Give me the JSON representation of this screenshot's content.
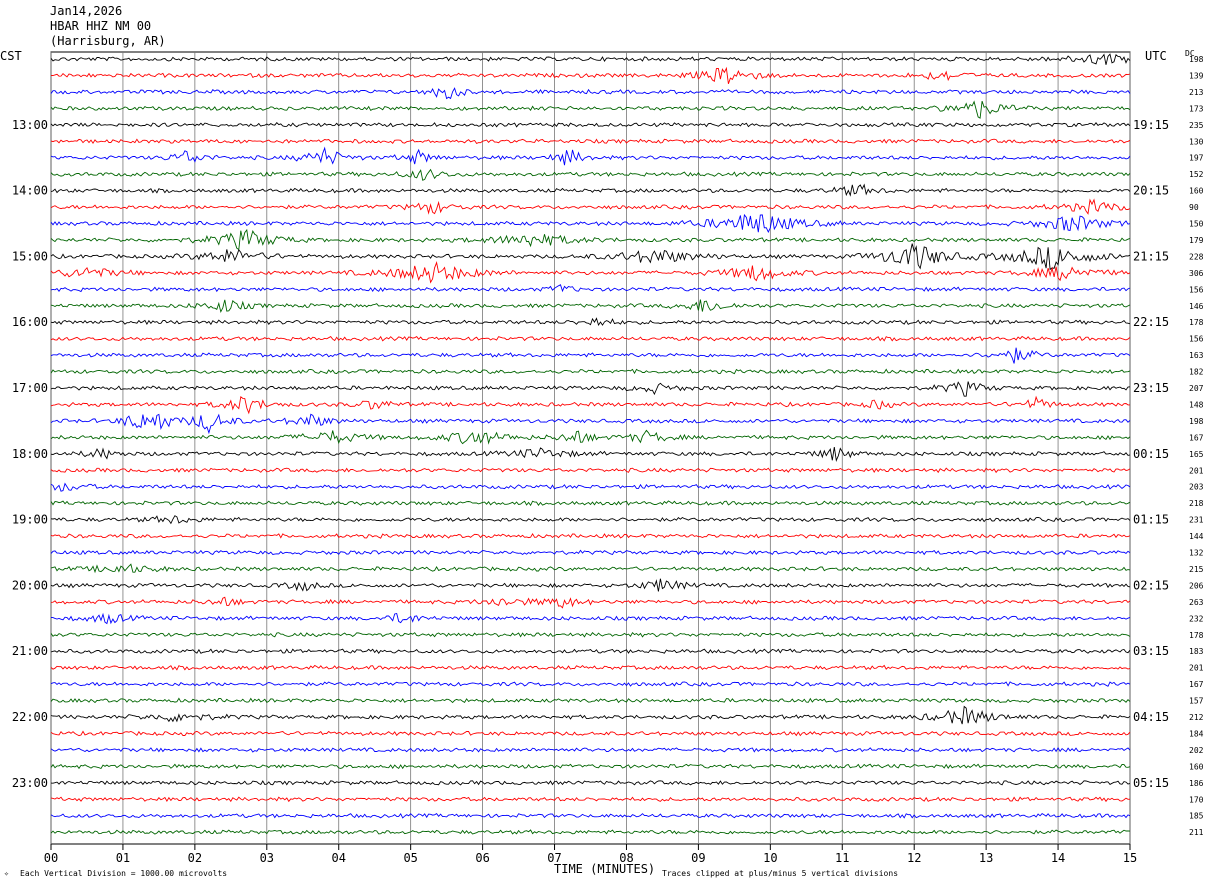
{
  "header": {
    "date": "Jan14,2026",
    "station": "HBAR HHZ NM 00",
    "location": "(Harrisburg, AR)"
  },
  "labels": {
    "left_zone": "CST",
    "right_zone": "UTC",
    "dc_label": "DC",
    "xlabel": "TIME (MINUTES)",
    "scale_note": "Each Vertical Division = 1000.00 microvolts",
    "clip_note": "Traces clipped at plus/minus 5 vertical divisions"
  },
  "colors": {
    "cycle": [
      "#000000",
      "#ff0000",
      "#0000ff",
      "#006400"
    ],
    "grid": "#000000",
    "text": "#000000"
  },
  "chart_data": {
    "type": "seismogram",
    "x_ticks": [
      "00",
      "01",
      "02",
      "03",
      "04",
      "05",
      "06",
      "07",
      "08",
      "09",
      "10",
      "11",
      "12",
      "13",
      "14",
      "15"
    ],
    "xlim": [
      0,
      15
    ],
    "trace_count": 48,
    "trace_minutes": 15,
    "left_hour_labels": [
      "13:00",
      "14:00",
      "15:00",
      "16:00",
      "17:00",
      "18:00",
      "19:00",
      "20:00",
      "21:00",
      "22:00",
      "23:00"
    ],
    "right_hour_labels": [
      "19:15",
      "20:15",
      "21:15",
      "22:15",
      "23:15",
      "00:15",
      "01:15",
      "02:15",
      "03:15",
      "04:15",
      "05:15"
    ],
    "hour_label_first_trace": 4,
    "hour_label_every": 4,
    "dc_offsets": [
      198,
      139,
      213,
      173,
      235,
      130,
      197,
      152,
      160,
      90,
      150,
      179,
      228,
      306,
      156,
      146,
      178,
      156,
      163,
      182,
      207,
      148,
      198,
      167,
      165,
      201,
      203,
      218,
      231,
      144,
      132,
      215,
      206,
      263,
      232,
      178,
      183,
      201,
      167,
      157,
      212,
      184,
      202,
      160,
      186,
      170,
      185,
      211
    ],
    "events": [
      {
        "trace": 0,
        "minute": 14.6,
        "amp": 1.8,
        "width": 0.35
      },
      {
        "trace": 1,
        "minute": 9.4,
        "amp": 3.2,
        "width": 0.25
      },
      {
        "trace": 1,
        "minute": 12.4,
        "amp": 1.8,
        "width": 0.2
      },
      {
        "trace": 2,
        "minute": 5.5,
        "amp": 3.5,
        "width": 0.12
      },
      {
        "trace": 3,
        "minute": 12.9,
        "amp": 3.2,
        "width": 0.25
      },
      {
        "trace": 6,
        "minute": 1.9,
        "amp": 2.6,
        "width": 0.15
      },
      {
        "trace": 6,
        "minute": 3.8,
        "amp": 3.0,
        "width": 0.2
      },
      {
        "trace": 6,
        "minute": 5.1,
        "amp": 2.2,
        "width": 0.15
      },
      {
        "trace": 6,
        "minute": 7.2,
        "amp": 2.8,
        "width": 0.15
      },
      {
        "trace": 7,
        "minute": 5.2,
        "amp": 1.8,
        "width": 0.2
      },
      {
        "trace": 8,
        "minute": 11.2,
        "amp": 2.0,
        "width": 0.2
      },
      {
        "trace": 9,
        "minute": 5.3,
        "amp": 2.0,
        "width": 0.2
      },
      {
        "trace": 9,
        "minute": 14.5,
        "amp": 2.0,
        "width": 0.3
      },
      {
        "trace": 10,
        "minute": 9.8,
        "amp": 4.0,
        "width": 0.4
      },
      {
        "trace": 10,
        "minute": 14.2,
        "amp": 3.0,
        "width": 0.3
      },
      {
        "trace": 11,
        "minute": 2.7,
        "amp": 3.5,
        "width": 0.3
      },
      {
        "trace": 11,
        "minute": 6.7,
        "amp": 2.2,
        "width": 0.4
      },
      {
        "trace": 12,
        "minute": 12.0,
        "amp": 5.0,
        "width": 0.3
      },
      {
        "trace": 12,
        "minute": 13.9,
        "amp": 4.0,
        "width": 0.4
      },
      {
        "trace": 12,
        "minute": 8.4,
        "amp": 2.4,
        "width": 0.4
      },
      {
        "trace": 12,
        "minute": 2.5,
        "amp": 2.4,
        "width": 0.3
      },
      {
        "trace": 13,
        "minute": 5.3,
        "amp": 3.5,
        "width": 0.4
      },
      {
        "trace": 13,
        "minute": 9.8,
        "amp": 2.6,
        "width": 0.3
      },
      {
        "trace": 13,
        "minute": 14.1,
        "amp": 2.5,
        "width": 0.3
      },
      {
        "trace": 13,
        "minute": 0.5,
        "amp": 1.8,
        "width": 0.3
      },
      {
        "trace": 14,
        "minute": 7.1,
        "amp": 1.6,
        "width": 0.1
      },
      {
        "trace": 15,
        "minute": 2.4,
        "amp": 2.2,
        "width": 0.2
      },
      {
        "trace": 15,
        "minute": 9.1,
        "amp": 2.5,
        "width": 0.2
      },
      {
        "trace": 16,
        "minute": 7.6,
        "amp": 1.6,
        "width": 0.15
      },
      {
        "trace": 18,
        "minute": 13.4,
        "amp": 2.4,
        "width": 0.2
      },
      {
        "trace": 20,
        "minute": 12.7,
        "amp": 2.4,
        "width": 0.2
      },
      {
        "trace": 20,
        "minute": 8.4,
        "amp": 1.5,
        "width": 0.2
      },
      {
        "trace": 21,
        "minute": 2.7,
        "amp": 3.0,
        "width": 0.2
      },
      {
        "trace": 21,
        "minute": 4.5,
        "amp": 1.8,
        "width": 0.15
      },
      {
        "trace": 21,
        "minute": 11.5,
        "amp": 1.8,
        "width": 0.1
      },
      {
        "trace": 21,
        "minute": 13.7,
        "amp": 2.0,
        "width": 0.15
      },
      {
        "trace": 22,
        "minute": 1.2,
        "amp": 3.0,
        "width": 0.15
      },
      {
        "trace": 22,
        "minute": 1.5,
        "amp": 3.5,
        "width": 0.1
      },
      {
        "trace": 22,
        "minute": 2.2,
        "amp": 3.5,
        "width": 0.2
      },
      {
        "trace": 22,
        "minute": 3.6,
        "amp": 2.2,
        "width": 0.2
      },
      {
        "trace": 23,
        "minute": 3.9,
        "amp": 2.0,
        "width": 0.3
      },
      {
        "trace": 23,
        "minute": 5.9,
        "amp": 2.5,
        "width": 0.3
      },
      {
        "trace": 23,
        "minute": 7.3,
        "amp": 2.6,
        "width": 0.15
      },
      {
        "trace": 23,
        "minute": 8.3,
        "amp": 2.0,
        "width": 0.2
      },
      {
        "trace": 24,
        "minute": 0.7,
        "amp": 1.8,
        "width": 0.15
      },
      {
        "trace": 24,
        "minute": 6.8,
        "amp": 1.6,
        "width": 0.3
      },
      {
        "trace": 24,
        "minute": 10.9,
        "amp": 2.4,
        "width": 0.15
      },
      {
        "trace": 26,
        "minute": 0.2,
        "amp": 1.4,
        "width": 0.2
      },
      {
        "trace": 28,
        "minute": 1.7,
        "amp": 1.3,
        "width": 0.2
      },
      {
        "trace": 31,
        "minute": 1.0,
        "amp": 1.5,
        "width": 0.3
      },
      {
        "trace": 32,
        "minute": 3.5,
        "amp": 1.6,
        "width": 0.15
      },
      {
        "trace": 32,
        "minute": 8.5,
        "amp": 2.2,
        "width": 0.2
      },
      {
        "trace": 33,
        "minute": 2.4,
        "amp": 1.5,
        "width": 0.15
      },
      {
        "trace": 33,
        "minute": 6.3,
        "amp": 1.5,
        "width": 0.2
      },
      {
        "trace": 33,
        "minute": 7.1,
        "amp": 1.8,
        "width": 0.2
      },
      {
        "trace": 34,
        "minute": 0.8,
        "amp": 1.6,
        "width": 0.2
      },
      {
        "trace": 34,
        "minute": 4.9,
        "amp": 2.0,
        "width": 0.15
      },
      {
        "trace": 40,
        "minute": 1.8,
        "amp": 1.5,
        "width": 0.3
      },
      {
        "trace": 40,
        "minute": 12.7,
        "amp": 3.0,
        "width": 0.3
      }
    ]
  }
}
